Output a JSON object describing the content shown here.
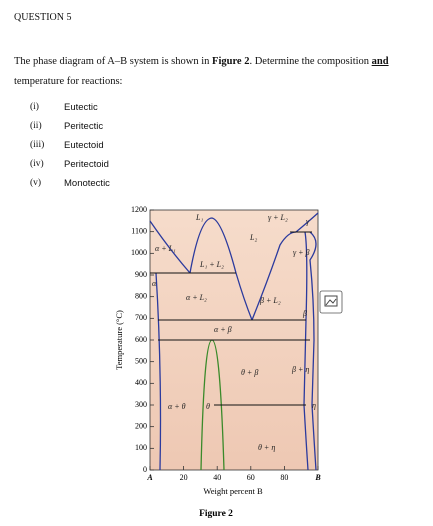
{
  "header": {
    "title": "QUESTION 5"
  },
  "intro": {
    "part1": "The phase diagram of A–B system is shown in ",
    "figure_ref": "Figure 2",
    "part2": ". Determine the composition ",
    "underlined": "and",
    "line2": "temperature for reactions:"
  },
  "list": [
    {
      "num": "(i)",
      "text": "Eutectic"
    },
    {
      "num": "(ii)",
      "text": "Peritectic"
    },
    {
      "num": "(iii)",
      "text": "Eutectoid"
    },
    {
      "num": "(iv)",
      "text": "Peritectoid"
    },
    {
      "num": "(v)",
      "text": "Monotectic"
    }
  ],
  "figure": {
    "y_label": "Temperature (°C)",
    "x_label": "Weight percent B",
    "caption": "Figure 2",
    "y_ticks": [
      "1200",
      "1100",
      "1000",
      "900",
      "800",
      "700",
      "600",
      "500",
      "400",
      "300",
      "200",
      "100",
      "0"
    ],
    "x_ticks": [
      "A",
      "20",
      "40",
      "60",
      "80",
      "B"
    ],
    "regions": {
      "l1": "L₁",
      "l2": "L₂",
      "gamma_l2": "γ + L₂",
      "gamma": "γ",
      "alpha_l1": "α + L₁",
      "l1_l2": "L₁ + L₂",
      "gamma_beta": "γ + β",
      "alpha": "α",
      "alpha_l2": "α + L₂",
      "beta_l2": "β + L₂",
      "beta": "β",
      "alpha_beta": "α + β",
      "theta_beta": "θ + β",
      "beta_eta": "β + η",
      "alpha_theta": "α + θ",
      "theta": "θ",
      "eta": "η",
      "theta_eta": "θ + η"
    }
  }
}
